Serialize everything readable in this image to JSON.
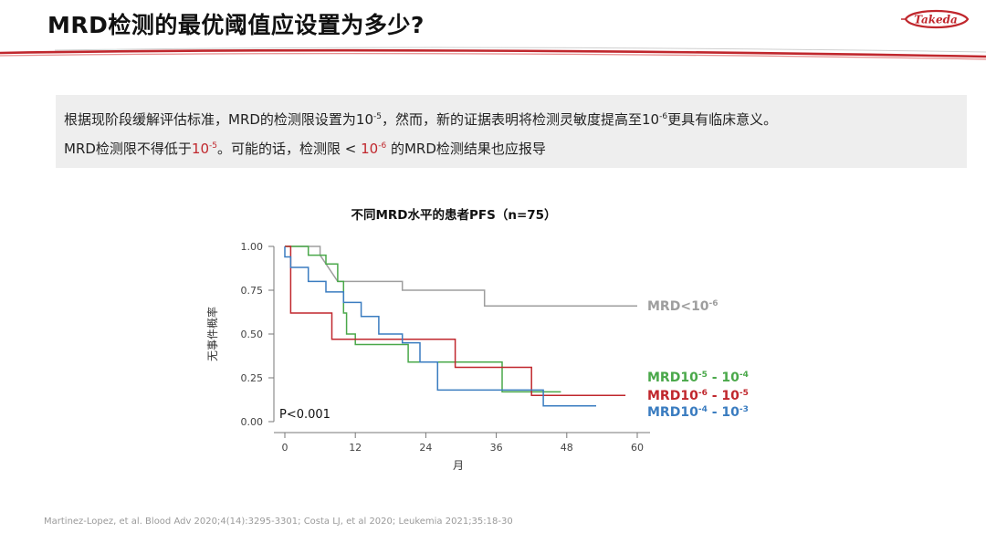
{
  "slide": {
    "title": "MRD检测的最优阈值应设置为多少?",
    "logo_text": "Takeda"
  },
  "callout": {
    "line1": [
      {
        "t": "根据现阶段缓解评估标准，MRD的检测限设置为10"
      },
      {
        "t": "-5",
        "sup": true
      },
      {
        "t": "，然而，新的证据表明将检测灵敏度提高至10"
      },
      {
        "t": "-6",
        "sup": true
      },
      {
        "t": "更具有临床意义。"
      }
    ],
    "line2": [
      {
        "t": "MRD检测限不得低于"
      },
      {
        "t": "10",
        "red": true
      },
      {
        "t": "-5",
        "sup": true,
        "red": true
      },
      {
        "t": "。可能的话，检测限 < "
      },
      {
        "t": "10",
        "red": true
      },
      {
        "t": "-6",
        "sup": true,
        "red": true
      },
      {
        "t": " 的MRD检测结果也应报导"
      }
    ]
  },
  "chart_data": {
    "type": "line",
    "title": "不同MRD水平的患者PFS（n=75）",
    "xlabel": "月",
    "ylabel": "无事件概率",
    "xlim": [
      0,
      60
    ],
    "ylim": [
      0,
      1
    ],
    "xticks": [
      "0",
      "12",
      "24",
      "36",
      "48",
      "60"
    ],
    "yticks": [
      "0.00",
      "0.25",
      "0.50",
      "0.75",
      "1.00"
    ],
    "annotation": "P<0.001",
    "grid": false,
    "series": [
      {
        "name_parts": [
          {
            "t": "MRD<10"
          },
          {
            "t": "-6",
            "sup": true
          }
        ],
        "color": "#9e9e9e",
        "points": [
          [
            0,
            1.0
          ],
          [
            6,
            1.0
          ],
          [
            6,
            0.95
          ],
          [
            8,
            0.85
          ],
          [
            9,
            0.8
          ],
          [
            20,
            0.8
          ],
          [
            20,
            0.75
          ],
          [
            34,
            0.75
          ],
          [
            34,
            0.66
          ],
          [
            60,
            0.66
          ]
        ]
      },
      {
        "name_parts": [
          {
            "t": "MRD10"
          },
          {
            "t": "-5",
            "sup": true
          },
          {
            "t": " - 10"
          },
          {
            "t": "-4",
            "sup": true
          }
        ],
        "color": "#4aa84a",
        "points": [
          [
            0,
            1.0
          ],
          [
            4,
            1.0
          ],
          [
            4,
            0.95
          ],
          [
            7,
            0.95
          ],
          [
            7,
            0.9
          ],
          [
            9,
            0.9
          ],
          [
            9,
            0.8
          ],
          [
            10,
            0.8
          ],
          [
            10,
            0.62
          ],
          [
            10.5,
            0.62
          ],
          [
            10.5,
            0.5
          ],
          [
            12,
            0.5
          ],
          [
            12,
            0.44
          ],
          [
            21,
            0.44
          ],
          [
            21,
            0.34
          ],
          [
            37,
            0.34
          ],
          [
            37,
            0.17
          ],
          [
            47,
            0.17
          ]
        ]
      },
      {
        "name_parts": [
          {
            "t": "MRD10"
          },
          {
            "t": "-6",
            "sup": true
          },
          {
            "t": " - 10"
          },
          {
            "t": "-5",
            "sup": true
          }
        ],
        "color": "#c0272d",
        "points": [
          [
            0,
            1.0
          ],
          [
            1,
            1.0
          ],
          [
            1,
            0.62
          ],
          [
            8,
            0.62
          ],
          [
            8,
            0.47
          ],
          [
            29,
            0.47
          ],
          [
            29,
            0.31
          ],
          [
            42,
            0.31
          ],
          [
            42,
            0.15
          ],
          [
            58,
            0.15
          ]
        ]
      },
      {
        "name_parts": [
          {
            "t": "MRD10"
          },
          {
            "t": "-4",
            "sup": true
          },
          {
            "t": " - 10"
          },
          {
            "t": "-3",
            "sup": true
          }
        ],
        "color": "#3a7cc0",
        "points": [
          [
            0,
            1.0
          ],
          [
            0,
            0.94
          ],
          [
            1,
            0.94
          ],
          [
            1,
            0.88
          ],
          [
            4,
            0.88
          ],
          [
            4,
            0.8
          ],
          [
            7,
            0.8
          ],
          [
            7,
            0.74
          ],
          [
            10,
            0.74
          ],
          [
            10,
            0.68
          ],
          [
            13,
            0.68
          ],
          [
            13,
            0.6
          ],
          [
            16,
            0.6
          ],
          [
            16,
            0.5
          ],
          [
            20,
            0.5
          ],
          [
            20,
            0.45
          ],
          [
            23,
            0.45
          ],
          [
            23,
            0.34
          ],
          [
            26,
            0.34
          ],
          [
            26,
            0.18
          ],
          [
            44,
            0.18
          ],
          [
            44,
            0.09
          ],
          [
            53,
            0.09
          ]
        ]
      }
    ]
  },
  "reference": "Martinez-Lopez, et al. Blood Adv 2020;4(14):3295-3301; Costa LJ, et al 2020; Leukemia 2021;35:18-30"
}
